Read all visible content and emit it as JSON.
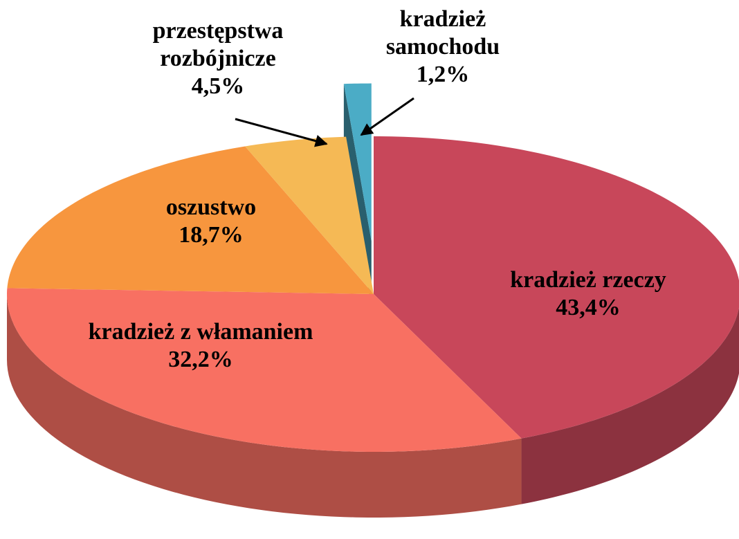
{
  "chart_data": {
    "type": "pie",
    "categories": [
      "kradzież rzeczy",
      "kradzież z włamaniem",
      "oszustwo",
      "przestępstwa rozbójnicze",
      "kradzież samochodu"
    ],
    "values": [
      43.4,
      32.2,
      18.7,
      4.5,
      1.2
    ],
    "value_labels": [
      "43,4%",
      "32,2%",
      "18,7%",
      "4,5%",
      "1,2%"
    ],
    "colors": [
      "#c8475a",
      "#f87062",
      "#f7963e",
      "#f5b955",
      "#4bacc6"
    ],
    "exploded": [
      4
    ]
  }
}
